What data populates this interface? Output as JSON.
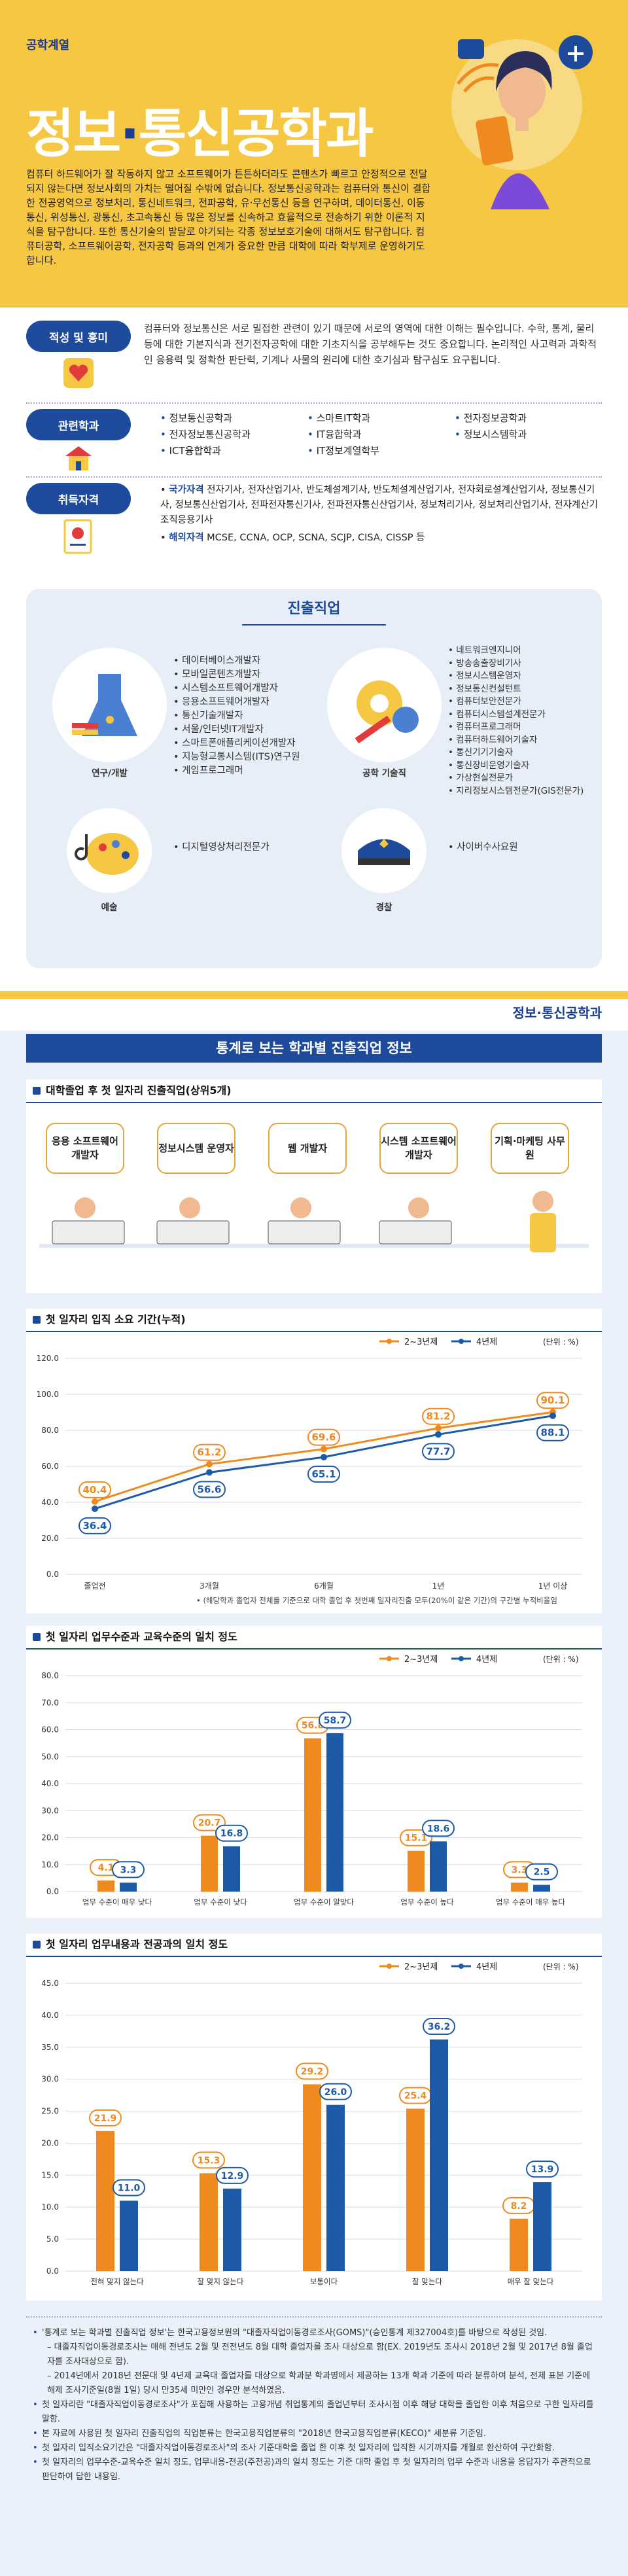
{
  "header": {
    "category": "공학계열",
    "title_part1": "정보",
    "title_dot": "·",
    "title_part2": "통신공학과",
    "intro": "컴퓨터 하드웨어가 잘 작동하지 않고 소프트웨어가 튼튼하더라도 콘텐츠가 빠르고 안정적으로 전달되지 않는다면 정보사회의 가치는 떨어질 수밖에 없습니다. 정보통신공학과는 컴퓨터와 통신이 결합한 전공영역으로 정보처리, 통신네트워크, 전파공학, 유·무선통신 등을 연구하며, 데이터통신, 이동통신, 위성통신, 광통신, 초고속통신 등 많은 정보를 신속하고 효율적으로 전송하기 위한 이론적 지식을 탐구합니다. 또한 통신기술의 발달로 야기되는 각종 정보보호기술에 대해서도 탐구합니다. 컴퓨터공학, 소프트웨어공학, 전자공학 등과의 연계가 중요한 만큼 대학에 따라 학부제로 운영하기도 합니다."
  },
  "aptitude": {
    "label": "적성 및 흥미",
    "text": "컴퓨터와 정보통신은 서로 밀접한 관련이 있기 때문에 서로의 영역에 대한 이해는 필수입니다. 수학, 통계, 물리 등에 대한 기본지식과 전기전자공학에 대한 기초지식을 공부해두는 것도 중요합니다. 논리적인 사고력과 과학적인 응용력 및 정확한 판단력, 기계나 사물의 원리에 대한 호기심과 탐구심도 요구됩니다."
  },
  "related": {
    "label": "관련학과",
    "items": [
      "정보통신공학과",
      "스마트IT학과",
      "전자정보공학과",
      "전자정보통신공학과",
      "IT융합학과",
      "정보시스템학과",
      "ICT융합학과",
      "IT정보계열학부"
    ]
  },
  "license": {
    "label": "취득자격",
    "national_label": "국가자격",
    "national_text": "전자기사, 전자산업기사, 반도체설계기사, 반도체설계산업기사, 전자회로설계산업기사, 정보통신기사, 정보통신산업기사, 전파전자통신기사, 전파전자통신산업기사, 정보처리기사, 정보처리산업기사, 전자계산기조직응용기사",
    "foreign_label": "해외자격",
    "foreign_text": "MCSE, CCNA, OCP, SCNA, SCJP, CISA, CISSP 등"
  },
  "jobs": {
    "title": "진출직업",
    "research": {
      "caption": "연구/개발",
      "items": [
        "데이터베이스개발자",
        "모바일콘텐츠개발자",
        "시스템소프트웨어개발자",
        "응용소프트웨어개발자",
        "통신기술개발자",
        "서울/인터넷IT개발자",
        "스마트폰애플리케이션개발자",
        "지능형교통시스템(ITS)연구원",
        "게임프로그래머"
      ]
    },
    "engineer": {
      "caption": "공학 기술직",
      "items": [
        "네트워크엔지니어",
        "방송송출장비기사",
        "정보시스템운영자",
        "정보통신컨설턴트",
        "컴퓨터보안전문가",
        "컴퓨터시스템설계전문가",
        "컴퓨터프로그래머",
        "컴퓨터하드웨어기술자",
        "통신기기기술자",
        "통신장비운영기술자",
        "가상현실전문가",
        "지리정보시스템전문가(GIS전문가)"
      ]
    },
    "art": {
      "caption": "예술",
      "items": [
        "디지털영상처리전문가"
      ]
    },
    "police": {
      "caption": "경찰",
      "items": [
        "사이버수사요원"
      ]
    }
  },
  "subhead": "정보·통신공학과",
  "stats": {
    "title": "통계로 보는 학과별 진출직업 정보",
    "first_jobs": {
      "title": "대학졸업 후 첫 일자리 진출직업(상위5개)",
      "items": [
        "응용 소프트웨어 개발자",
        "정보시스템 운영자",
        "웹 개발자",
        "시스템 소프트웨어 개발자",
        "기획·마케팅 사무원"
      ]
    },
    "legend_2": "2~3년제",
    "legend_4": "4년제",
    "unit": "(단위 : %)",
    "chart1_title": "첫 일자리 입직 소요 기간(누적)",
    "chart1_note": "• (해당학과 졸업자 전체를 기준으로 대학 졸업 후 첫번째 일자리진출 모두(20%이 같은 기간)의 구간별 누적비율임",
    "chart2_title": "첫 일자리 업무수준과 교육수준의 일치 정도",
    "chart3_title": "첫 일자리 업무내용과 전공과의 일치 정도"
  },
  "chart_data": [
    {
      "type": "line",
      "title": "첫 일자리 입직 소요 기간(누적)",
      "categories": [
        "졸업전",
        "3개월",
        "6개월",
        "1년",
        "1년 이상"
      ],
      "ylim": [
        0,
        120
      ],
      "series": [
        {
          "name": "2~3년제",
          "values": [
            40.4,
            61.2,
            69.6,
            81.2,
            90.1
          ],
          "color": "#ef8a1f"
        },
        {
          "name": "4년제",
          "values": [
            36.4,
            56.6,
            65.1,
            77.7,
            88.1
          ],
          "color": "#1d5aa8"
        }
      ]
    },
    {
      "type": "bar",
      "title": "첫 일자리 업무수준과 교육수준의 일치 정도",
      "categories": [
        "업무 수준이 매우 낮다",
        "업무 수준이 낮다",
        "업무 수준이 알맞다",
        "업무 수준이 높다",
        "업무 수준이 매우 높다"
      ],
      "ylim": [
        0,
        80
      ],
      "series": [
        {
          "name": "2~3년제",
          "values": [
            4.1,
            20.7,
            56.8,
            15.1,
            3.3
          ],
          "color": "#ef8a1f"
        },
        {
          "name": "4년제",
          "values": [
            3.3,
            16.8,
            58.7,
            18.6,
            2.5
          ],
          "color": "#1d5aa8"
        }
      ]
    },
    {
      "type": "bar",
      "title": "첫 일자리 업무내용과 전공과의 일치 정도",
      "categories": [
        "전혀 맞지 않는다",
        "잘 맞지 않는다",
        "보통이다",
        "잘 맞는다",
        "매우 잘 맞는다"
      ],
      "ylim": [
        0,
        45
      ],
      "series": [
        {
          "name": "2~3년제",
          "values": [
            21.9,
            15.3,
            29.2,
            25.4,
            8.2
          ],
          "color": "#ef8a1f"
        },
        {
          "name": "4년제",
          "values": [
            11.0,
            12.9,
            26.0,
            36.2,
            13.9
          ],
          "color": "#1d5aa8"
        }
      ]
    }
  ],
  "notes": [
    "'통계로 보는 학과별 진출직업 정보'는 한국고용정보원의 \"대졸자직업이동경로조사(GOMS)\"(승인통계 제327004호)를 바탕으로 작성된 것임.",
    "– 대졸자직업이동경로조사는 매해 전년도 2월 및 전전년도 8월 대학 졸업자를 조사 대상으로 함(EX. 2019년도 조사시 2018년 2월 및 2017년 8월 졸업자를 조사대상으로 함).",
    "– 2014년에서 2018년 전문대 및 4년제 교육대 졸업자를 대상으로 학과분 학과명에서 제공하는 13개 학과 기준에 따라 분류하여 분석, 전체 표본 기준에 해제 조사기준일(8월 1일) 당시 만35세 미만인 경우만 분석하였음.",
    "첫 일자리란 \"대졸자직업이동경로조사\"가 포집해 사용하는 고용개념 취업통계의 졸업년부터 조사시점 이후 해당 대학을 졸업한 이후 처음으로 구한 일자리를 말함.",
    "본 자료에 사용된 첫 일자리 진출직업의 직업분류는 한국고용직업분류의 \"2018년 한국고용직업분류(KECO)\" 세분류 기준임.",
    "첫 일자리 입직소요기간은 \"대졸자직업이동경로조사\"의 조사 기준대학을 졸업 한 이후 첫 일자리에 입직한 시기까지를 개월로 환산하여 구간화함.",
    "첫 일자리의 업무수준-교육수준 일치 정도, 업무내용-전공(주전공)과의 일치 정도는 기준 대학 졸업 후 첫 일자리의 업무 수준과 내용을 응답자가 주관적으로 판단하여 답한 내용임."
  ]
}
